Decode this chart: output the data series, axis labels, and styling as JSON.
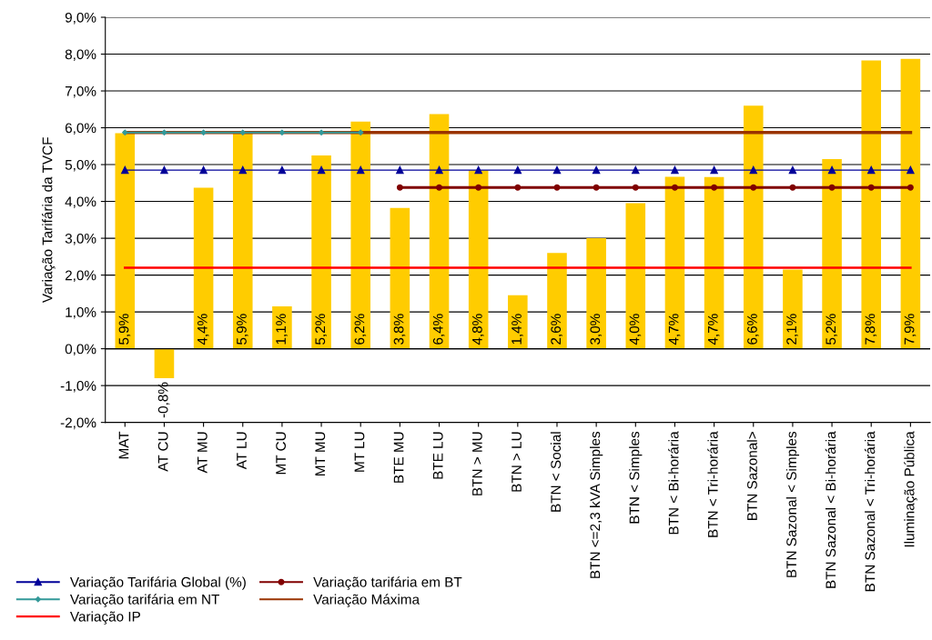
{
  "chart_data": {
    "type": "bar",
    "ylabel": "Variação Tarifária da TVCF",
    "categories": [
      "MAT",
      "AT CU",
      "AT MU",
      "AT LU",
      "MT CU",
      "MT MU",
      "MT LU",
      "BTE MU",
      "BTE LU",
      "BTN > MU",
      "BTN > LU",
      "BTN < Social",
      "BTN <=2,3 kVA Simples",
      "BTN < Simples",
      "BTN < Bi-horária",
      "BTN < Tri-horária",
      "BTN Sazonal>",
      "BTN Sazonal < Simples",
      "BTN Sazonal < Bi-horária",
      "BTN Sazonal < Tri-horária",
      "Iluminação Pública"
    ],
    "series": [
      {
        "color": "#ffcc00",
        "values": [
          5.85,
          -0.8,
          4.37,
          5.9,
          1.15,
          5.25,
          6.17,
          3.82,
          6.37,
          4.85,
          1.45,
          2.6,
          3.0,
          3.95,
          4.67,
          4.66,
          6.6,
          2.15,
          5.15,
          7.83,
          7.87
        ],
        "value_labels": [
          "5,9%",
          "-0,8%",
          "4,4%",
          "5,9%",
          "1,1%",
          "5,2%",
          "6,2%",
          "3,8%",
          "6,4%",
          "4,8%",
          "1,4%",
          "2,6%",
          "3,0%",
          "4,0%",
          "4,7%",
          "4,7%",
          "6,6%",
          "2,1%",
          "5,2%",
          "7,8%",
          "7,9%"
        ]
      },
      {
        "type": "line",
        "name": "Variação Tarifária Global (%)",
        "color": "#000099",
        "marker": "triangle",
        "values": [
          4.85,
          4.85,
          4.85,
          4.85,
          4.85,
          4.85,
          4.85,
          4.85,
          4.85,
          4.85,
          4.85,
          4.85,
          4.85,
          4.85,
          4.85,
          4.85,
          4.85,
          4.85,
          4.85,
          4.85,
          4.85
        ]
      },
      {
        "type": "line",
        "name": "Variação tarifária em NT",
        "color": "#339999",
        "marker": "diamond",
        "values": [
          5.87,
          5.87,
          5.87,
          5.87,
          5.87,
          5.87,
          5.87,
          null,
          null,
          null,
          null,
          null,
          null,
          null,
          null,
          null,
          null,
          null,
          null,
          null,
          null
        ]
      },
      {
        "type": "line",
        "name": "Variação IP",
        "color": "#ff0000",
        "marker": "none",
        "values": [
          2.2,
          2.2,
          2.2,
          2.2,
          2.2,
          2.2,
          2.2,
          2.2,
          2.2,
          2.2,
          2.2,
          2.2,
          2.2,
          2.2,
          2.2,
          2.2,
          2.2,
          2.2,
          2.2,
          2.2,
          2.2
        ]
      },
      {
        "type": "line",
        "name": "Variação tarifária em BT",
        "color": "#800000",
        "marker": "circle",
        "values": [
          null,
          null,
          null,
          null,
          null,
          null,
          null,
          4.38,
          4.38,
          4.38,
          4.38,
          4.38,
          4.38,
          4.38,
          4.38,
          4.38,
          4.38,
          4.38,
          4.38,
          4.38,
          4.38
        ]
      },
      {
        "type": "line",
        "name": "Variação Máxima",
        "color": "#993300",
        "marker": "none",
        "values": [
          5.87,
          5.87,
          5.87,
          5.87,
          5.87,
          5.87,
          5.87,
          5.87,
          5.87,
          5.87,
          5.87,
          5.87,
          5.87,
          5.87,
          5.87,
          5.87,
          5.87,
          5.87,
          5.87,
          5.87,
          5.87
        ]
      }
    ],
    "ylim": [
      -2,
      9
    ],
    "yticks": [
      {
        "value": -2,
        "label": "-2,0%"
      },
      {
        "value": -1,
        "label": "-1,0%"
      },
      {
        "value": 0,
        "label": "0,0%"
      },
      {
        "value": 1,
        "label": "1,0%"
      },
      {
        "value": 2,
        "label": "2,0%"
      },
      {
        "value": 3,
        "label": "3,0%"
      },
      {
        "value": 4,
        "label": "4,0%"
      },
      {
        "value": 5,
        "label": "5,0%"
      },
      {
        "value": 6,
        "label": "6,0%"
      },
      {
        "value": 7,
        "label": "7,0%"
      },
      {
        "value": 8,
        "label": "8,0%"
      },
      {
        "value": 9,
        "label": "9,0%"
      }
    ],
    "grid": "y",
    "legend": "bottom left"
  }
}
